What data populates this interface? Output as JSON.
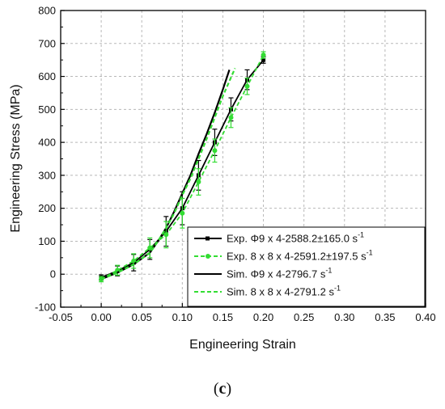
{
  "caption": {
    "open": "(",
    "letter": "c",
    "close": ")"
  },
  "chart_data": {
    "type": "line",
    "title": "",
    "xlabel": "Engineering Strain",
    "ylabel": "Engineering Stress (MPa)",
    "xlim": [
      -0.05,
      0.4
    ],
    "ylim": [
      -100,
      800
    ],
    "xticks": [
      "-0.05",
      "0.00",
      "0.05",
      "0.10",
      "0.15",
      "0.20",
      "0.25",
      "0.30",
      "0.35",
      "0.40"
    ],
    "yticks": [
      "-100",
      "0",
      "100",
      "200",
      "300",
      "400",
      "500",
      "600",
      "700",
      "800"
    ],
    "grid": true,
    "legend_position": "bottom-right",
    "series": [
      {
        "name": "Exp. Φ9 x 4-2588.2±165.0 s",
        "name_sup": "-1",
        "color": "#000000",
        "style": "solid",
        "marker": "square",
        "x": [
          0.0,
          0.02,
          0.04,
          0.06,
          0.08,
          0.1,
          0.12,
          0.14,
          0.16,
          0.18,
          0.2
        ],
        "y": [
          -10,
          10,
          35,
          75,
          130,
          200,
          300,
          400,
          500,
          590,
          650
        ],
        "err": [
          8,
          15,
          25,
          30,
          45,
          50,
          45,
          40,
          35,
          30,
          10
        ]
      },
      {
        "name": "Exp. 8 x 8 x 4-2591.2±197.5 s",
        "name_sup": "-1",
        "color": "#33dd33",
        "style": "dashed",
        "marker": "circle",
        "x": [
          0.0,
          0.02,
          0.04,
          0.06,
          0.08,
          0.1,
          0.12,
          0.14,
          0.16,
          0.18,
          0.2
        ],
        "y": [
          -15,
          12,
          40,
          80,
          120,
          185,
          280,
          375,
          475,
          570,
          665
        ],
        "err": [
          8,
          15,
          22,
          30,
          40,
          45,
          40,
          35,
          30,
          25,
          10
        ]
      },
      {
        "name": "Sim. Φ9 x 4-2796.7 s",
        "name_sup": "-1",
        "color": "#000000",
        "style": "solid",
        "marker": "none",
        "x": [
          0.0,
          0.02,
          0.04,
          0.06,
          0.07,
          0.08,
          0.09,
          0.1,
          0.11,
          0.12,
          0.13,
          0.14,
          0.15,
          0.158
        ],
        "y": [
          -15,
          5,
          30,
          65,
          100,
          140,
          190,
          245,
          300,
          365,
          425,
          490,
          560,
          620
        ]
      },
      {
        "name": "Sim. 8 x 8 x 4-2791.2 s",
        "name_sup": "-1",
        "color": "#33dd33",
        "style": "dashed",
        "marker": "none",
        "x": [
          0.0,
          0.02,
          0.04,
          0.06,
          0.07,
          0.08,
          0.09,
          0.1,
          0.11,
          0.12,
          0.13,
          0.14,
          0.15,
          0.165
        ],
        "y": [
          -15,
          5,
          30,
          65,
          100,
          140,
          185,
          240,
          290,
          350,
          410,
          475,
          540,
          625
        ]
      }
    ]
  }
}
